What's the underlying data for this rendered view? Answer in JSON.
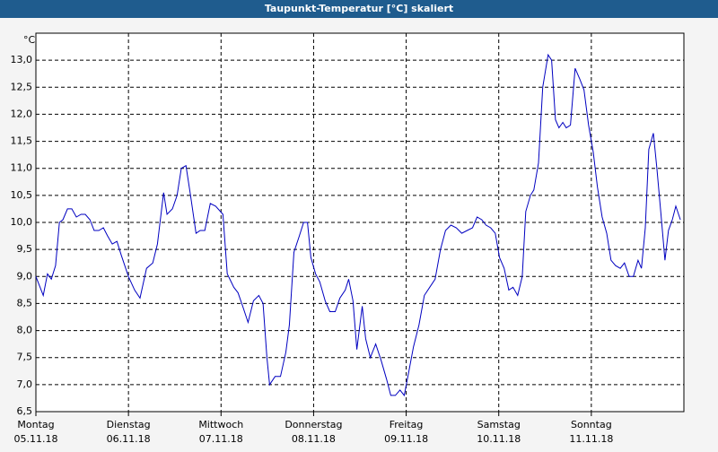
{
  "chart_data": {
    "type": "line",
    "title": "Taupunkt-Temperatur [°C] skaliert",
    "y_label": "°C",
    "xlim": [
      0,
      168
    ],
    "xticks": [
      {
        "value": 0,
        "label": "Montag"
      },
      {
        "value": 24,
        "label": "Dienstag"
      },
      {
        "value": 48,
        "label": "Mittwoch"
      },
      {
        "value": 72,
        "label": "Donnerstag"
      },
      {
        "value": 96,
        "label": "Freitag"
      },
      {
        "value": 120,
        "label": "Samstag"
      },
      {
        "value": 144,
        "label": "Sonntag"
      }
    ],
    "xtick_dates": [
      "05.11.18",
      "06.11.18",
      "07.11.18",
      "08.11.18",
      "09.11.18",
      "10.11.18",
      "11.11.18"
    ],
    "ylim": [
      6.5,
      13.5
    ],
    "yticks": [
      {
        "value": 6.5,
        "label": "6,5"
      },
      {
        "value": 7,
        "label": "7,0"
      },
      {
        "value": 7.5,
        "label": "7,5"
      },
      {
        "value": 8,
        "label": "8,0"
      },
      {
        "value": 8.5,
        "label": "8,5"
      },
      {
        "value": 9,
        "label": "9,0"
      },
      {
        "value": 9.5,
        "label": "9,5"
      },
      {
        "value": 10,
        "label": "10,0"
      },
      {
        "value": 10.5,
        "label": "10,5"
      },
      {
        "value": 11,
        "label": "11,0"
      },
      {
        "value": 11.5,
        "label": "11,5"
      },
      {
        "value": 12,
        "label": "12,0"
      },
      {
        "value": 12.5,
        "label": "12,5"
      },
      {
        "value": 13,
        "label": "13,0"
      }
    ],
    "grid": true,
    "color": "#0000c0",
    "x": [
      0,
      1.9,
      3.0,
      4.0,
      5.1,
      6.1,
      7.0,
      8.2,
      9.3,
      10.5,
      11.7,
      12.8,
      14.0,
      15.1,
      16.3,
      17.5,
      18.6,
      19.8,
      21.0,
      22.1,
      24.0,
      25.6,
      27.0,
      28.7,
      30.3,
      31.5,
      33.1,
      34.0,
      35.4,
      36.6,
      37.7,
      38.9,
      40.1,
      41.5,
      42.6,
      43.8,
      45.2,
      46.6,
      48.5,
      49.6,
      51.3,
      52.4,
      53.6,
      55.0,
      56.4,
      57.8,
      58.9,
      59.9,
      60.6,
      62.0,
      63.4,
      64.8,
      65.7,
      66.9,
      68.3,
      69.4,
      70.4,
      71.3,
      72.5,
      73.6,
      75.0,
      76.2,
      77.6,
      78.8,
      80.2,
      81.1,
      82.2,
      83.2,
      84.6,
      85.5,
      86.7,
      88.1,
      89.5,
      90.9,
      92.0,
      93.2,
      94.4,
      95.5,
      96.7,
      97.9,
      99.3,
      100.7,
      102.1,
      103.5,
      104.9,
      106.2,
      107.6,
      109.0,
      110.4,
      111.8,
      113.2,
      114.4,
      115.6,
      116.7,
      117.9,
      119.1,
      120.2,
      121.4,
      122.6,
      123.7,
      124.9,
      126.1,
      127.0,
      128.2,
      129.1,
      130.3,
      131.4,
      132.8,
      133.7,
      134.7,
      135.6,
      136.6,
      137.5,
      138.6,
      139.8,
      141.0,
      142.1,
      143.3,
      144.5,
      145.6,
      146.8,
      148.0,
      149.1,
      150.3,
      151.5,
      152.6,
      153.8,
      154.9,
      156.1,
      157.0,
      158.0,
      158.9,
      160.1,
      161.0,
      162.0,
      163.1,
      164.0,
      165.0,
      165.9,
      167.1
    ],
    "values": [
      9.0,
      8.65,
      9.05,
      8.95,
      9.2,
      10.0,
      10.05,
      10.25,
      10.25,
      10.1,
      10.15,
      10.15,
      10.05,
      9.85,
      9.85,
      9.9,
      9.75,
      9.6,
      9.65,
      9.4,
      9.0,
      8.75,
      8.6,
      9.15,
      9.25,
      9.6,
      10.55,
      10.15,
      10.25,
      10.5,
      11.0,
      11.05,
      10.5,
      9.8,
      9.85,
      9.85,
      10.35,
      10.3,
      10.15,
      9.05,
      8.8,
      8.7,
      8.45,
      8.15,
      8.55,
      8.65,
      8.5,
      7.5,
      7.0,
      7.15,
      7.15,
      7.6,
      8.1,
      9.45,
      9.75,
      10.0,
      10.0,
      9.35,
      9.05,
      8.9,
      8.55,
      8.35,
      8.35,
      8.6,
      8.75,
      8.95,
      8.55,
      7.65,
      8.45,
      7.85,
      7.5,
      7.75,
      7.45,
      7.1,
      6.8,
      6.8,
      6.9,
      6.8,
      7.25,
      7.7,
      8.1,
      8.65,
      8.8,
      8.95,
      9.5,
      9.85,
      9.95,
      9.9,
      9.8,
      9.85,
      9.9,
      10.1,
      10.05,
      9.95,
      9.9,
      9.8,
      9.35,
      9.15,
      8.75,
      8.8,
      8.65,
      9.0,
      10.2,
      10.5,
      10.6,
      11.1,
      12.5,
      13.1,
      13.0,
      11.9,
      11.75,
      11.85,
      11.75,
      11.8,
      12.85,
      12.65,
      12.45,
      11.8,
      11.3,
      10.65,
      10.1,
      9.8,
      9.3,
      9.2,
      9.15,
      9.25,
      9.0,
      9.0,
      9.3,
      9.15,
      9.9,
      11.35,
      11.65,
      11.0,
      10.2,
      9.3,
      9.85,
      10.05,
      10.3,
      10.05
    ]
  }
}
